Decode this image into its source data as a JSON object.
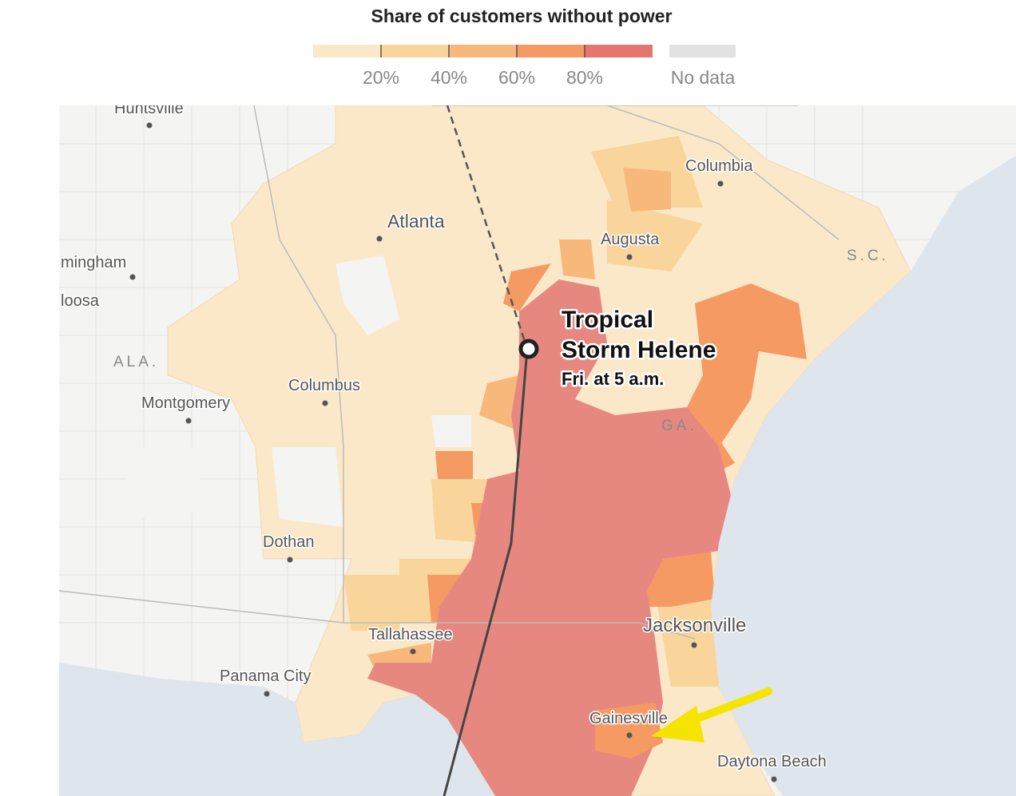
{
  "legend": {
    "title": "Share of customers without power",
    "range": [
      0,
      100
    ],
    "colors": [
      "#fbe8c8",
      "#f9d49b",
      "#f8b87b",
      "#f59a62",
      "#e4756f"
    ],
    "ticks": [
      {
        "value": 20,
        "label": "20%"
      },
      {
        "value": 40,
        "label": "40%"
      },
      {
        "value": 60,
        "label": "60%"
      },
      {
        "value": 80,
        "label": "80%"
      }
    ],
    "no_data": {
      "label": "No data",
      "color": "#e2e2e2"
    }
  },
  "map": {
    "cities": [
      "Huntsville",
      "mingham",
      "loosa",
      "Atlanta",
      "Columbia",
      "Augusta",
      "Columbus",
      "Montgomery",
      "Dothan",
      "Tallahassee",
      "Panama City",
      "Jacksonville",
      "Gainesville",
      "Daytona Beach"
    ],
    "states": [
      "ALA.",
      "GA.",
      "S.C."
    ],
    "storm": {
      "name_lines": [
        "Tropical",
        "Storm Helene"
      ],
      "time": "Fri. at 5 a.m."
    }
  }
}
